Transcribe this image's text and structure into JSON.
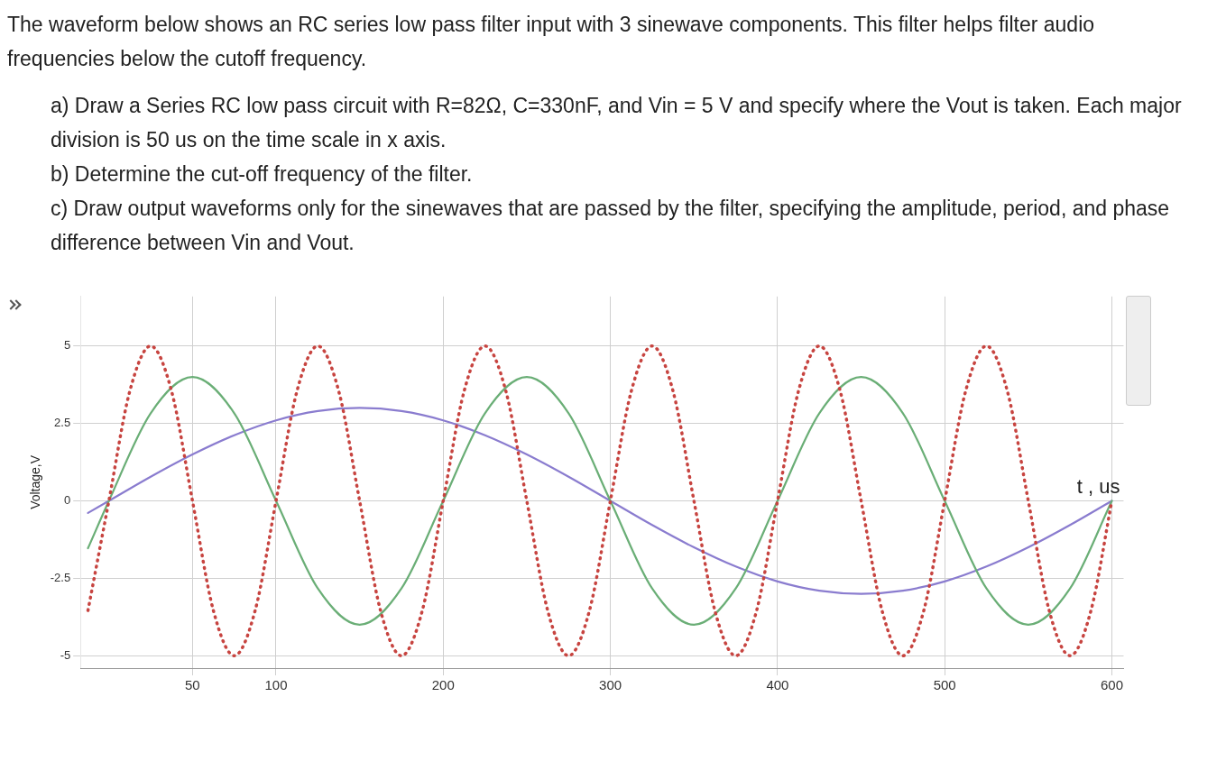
{
  "chart_data": {
    "type": "line",
    "title": "The waveform below shows an RC series low pass filter input with 3 sinewave components. This filter helps filter audio frequencies below the cutoff frequency.",
    "annotations": [
      "a)  Draw a Series RC low pass circuit with R=82Ω, C=330nF, and Vin = 5 V and specify where the Vout is taken. Each major division is 50 us on the time scale in x axis.",
      "b)  Determine the cut-off frequency of the filter.",
      "c)  Draw output waveforms only for the sinewaves that are passed by the filter, specifying the amplitude, period, and phase difference between Vin and Vout."
    ],
    "xlabel": "t , us",
    "ylabel": "Voltage,V",
    "xlim": [
      -17,
      607
    ],
    "ylim": [
      -5.4,
      6.6
    ],
    "xticks": [
      50,
      100,
      200,
      300,
      400,
      500,
      600
    ],
    "yticks": [
      -5,
      -2.5,
      0,
      2.5,
      5
    ],
    "grid": true,
    "legend": false,
    "marker": "none",
    "series": [
      {
        "color": "#c74440",
        "line_style": "dotted",
        "x": [
          -12.5,
          0,
          12.5,
          25,
          37.5,
          50,
          62.5,
          75,
          87.5,
          100,
          112.5,
          125,
          137.5,
          150,
          162.5,
          175,
          187.5,
          200,
          212.5,
          225,
          237.5,
          250,
          262.5,
          275,
          287.5,
          300,
          312.5,
          325,
          337.5,
          350,
          362.5,
          375,
          387.5,
          400,
          412.5,
          425,
          437.5,
          450,
          462.5,
          475,
          487.5,
          500,
          512.5,
          525,
          537.5,
          550,
          562.5,
          575,
          587.5,
          600
        ],
        "values": [
          -3.54,
          0,
          3.54,
          5,
          3.54,
          0,
          -3.54,
          -5,
          -3.54,
          0,
          3.54,
          5,
          3.54,
          0,
          -3.54,
          -5,
          -3.54,
          0,
          3.54,
          5,
          3.54,
          0,
          -3.54,
          -5,
          -3.54,
          0,
          3.54,
          5,
          3.54,
          0,
          -3.54,
          -5,
          -3.54,
          0,
          3.54,
          5,
          3.54,
          0,
          -3.54,
          -5,
          -3.54,
          0,
          3.54,
          5,
          3.54,
          0,
          -3.54,
          -5,
          -3.54,
          0
        ]
      },
      {
        "color": "#6aae76",
        "line_style": "solid",
        "x": [
          -12.5,
          0,
          25,
          50,
          75,
          100,
          125,
          150,
          175,
          200,
          225,
          250,
          275,
          300,
          325,
          350,
          375,
          400,
          425,
          450,
          475,
          500,
          525,
          550,
          575,
          600
        ],
        "values": [
          -1.53,
          0,
          2.83,
          4,
          2.83,
          0,
          -2.83,
          -4,
          -2.83,
          0,
          2.83,
          4,
          2.83,
          0,
          -2.83,
          -4,
          -2.83,
          0,
          2.83,
          4,
          2.83,
          0,
          -2.83,
          -4,
          -2.83,
          0
        ]
      },
      {
        "color": "#8a7ccf",
        "line_style": "solid",
        "x": [
          -12.5,
          0,
          25,
          50,
          75,
          100,
          125,
          150,
          175,
          200,
          225,
          250,
          275,
          300,
          325,
          350,
          375,
          400,
          425,
          450,
          475,
          500,
          525,
          550,
          575,
          600
        ],
        "values": [
          -0.39,
          0,
          0.78,
          1.5,
          2.12,
          2.6,
          2.9,
          3,
          2.9,
          2.6,
          2.12,
          1.5,
          0.78,
          0,
          -0.78,
          -1.5,
          -2.12,
          -2.6,
          -2.9,
          -3,
          -2.9,
          -2.6,
          -2.12,
          -1.5,
          -0.78,
          0
        ]
      }
    ]
  }
}
